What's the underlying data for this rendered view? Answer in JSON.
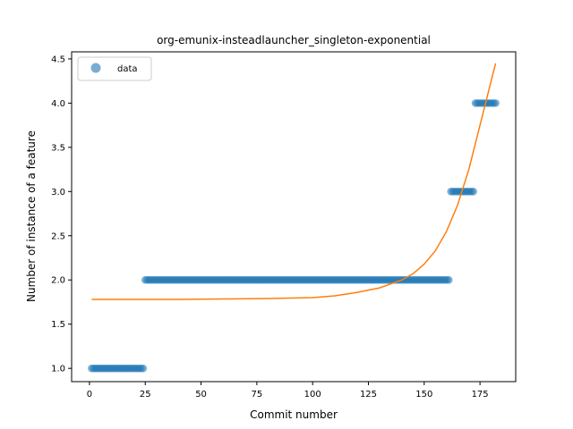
{
  "chart_data": {
    "type": "scatter",
    "title": "org-emunix-insteadlauncher_singleton-exponential",
    "xlabel": "Commit number",
    "ylabel": "Number of instance of a feature",
    "xlim": [
      -8,
      191
    ],
    "ylim": [
      0.85,
      4.58
    ],
    "xticks": [
      0,
      25,
      50,
      75,
      100,
      125,
      150,
      175
    ],
    "yticks": [
      1.0,
      1.5,
      2.0,
      2.5,
      3.0,
      3.5,
      4.0,
      4.5
    ],
    "xtick_labels": [
      "0",
      "25",
      "50",
      "75",
      "100",
      "125",
      "150",
      "175"
    ],
    "ytick_labels": [
      "1.0",
      "1.5",
      "2.0",
      "2.5",
      "3.0",
      "3.5",
      "4.0",
      "4.5"
    ],
    "grid": false,
    "legend": {
      "placement": "top-left",
      "entries": [
        "data"
      ]
    },
    "series": [
      {
        "name": "data",
        "kind": "scatter",
        "color": "#1f77b4",
        "segments": [
          {
            "x_start": 1,
            "x_end": 24,
            "y": 1.0
          },
          {
            "x_start": 25,
            "x_end": 161,
            "y": 2.0
          },
          {
            "x_start": 162,
            "x_end": 172,
            "y": 3.0
          },
          {
            "x_start": 173,
            "x_end": 182,
            "y": 4.0
          }
        ]
      },
      {
        "name": "",
        "kind": "line",
        "color": "#ff7f0e",
        "x": [
          1,
          20,
          40,
          60,
          80,
          100,
          110,
          120,
          130,
          140,
          145,
          150,
          155,
          160,
          165,
          170,
          175,
          178,
          182
        ],
        "y": [
          1.78,
          1.78,
          1.78,
          1.785,
          1.79,
          1.8,
          1.82,
          1.86,
          1.91,
          2.0,
          2.07,
          2.18,
          2.33,
          2.55,
          2.85,
          3.25,
          3.75,
          4.05,
          4.45
        ]
      }
    ]
  }
}
